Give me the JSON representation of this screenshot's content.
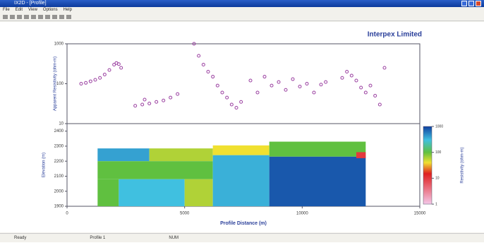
{
  "window": {
    "title": "IX2D - [Profile]",
    "menu": [
      "File",
      "Edit",
      "View",
      "Options",
      "Help"
    ]
  },
  "status": [
    "Ready",
    "Profile 1",
    "NUM"
  ],
  "chart_data": [
    {
      "type": "scatter",
      "title": "Interpex Limited",
      "y_label": "Apparent Resistivity (ohm-m)",
      "log_y": true,
      "ylim": [
        10,
        1000
      ],
      "yticks": [
        10,
        100,
        1000
      ],
      "xlim": [
        0,
        15000
      ],
      "color": "#9a3fa0",
      "x": [
        600,
        800,
        1000,
        1200,
        1400,
        1600,
        1800,
        2000,
        2100,
        2200,
        2300,
        2900,
        3200,
        3300,
        3500,
        3800,
        4100,
        4400,
        4700,
        5400,
        5600,
        5800,
        6000,
        6200,
        6400,
        6600,
        6800,
        7000,
        7200,
        7400,
        7800,
        8100,
        8400,
        8700,
        9000,
        9300,
        9600,
        9900,
        10200,
        10500,
        10800,
        11000,
        11700,
        11900,
        12100,
        12300,
        12500,
        12700,
        12900,
        13100,
        13300,
        13500
      ],
      "y": [
        100,
        105,
        115,
        125,
        140,
        170,
        220,
        300,
        330,
        310,
        250,
        28,
        30,
        40,
        32,
        35,
        38,
        45,
        55,
        1000,
        500,
        300,
        200,
        150,
        90,
        60,
        45,
        30,
        25,
        35,
        120,
        60,
        150,
        90,
        110,
        70,
        130,
        85,
        100,
        60,
        95,
        110,
        140,
        200,
        160,
        120,
        80,
        60,
        90,
        50,
        30,
        250
      ]
    },
    {
      "type": "section",
      "x_label": "Profile Distance (m)",
      "y_label": "Elevation (m)",
      "xlim": [
        0,
        15000
      ],
      "xticks": [
        0,
        5000,
        10000,
        15000
      ],
      "ylim": [
        1900,
        2450
      ],
      "yticks": [
        1900,
        2000,
        2100,
        2200,
        2300,
        2400
      ],
      "colorbar": {
        "label": "Resistivity (ohm-m)",
        "lim": [
          1,
          1000
        ],
        "ticks": [
          1,
          10,
          100,
          1000
        ],
        "stops": [
          {
            "value": 1,
            "color": "#f4c8e8"
          },
          {
            "value": 15,
            "color": "#e02020"
          },
          {
            "value": 40,
            "color": "#f0e030"
          },
          {
            "value": 100,
            "color": "#60c040"
          },
          {
            "value": 300,
            "color": "#40c0e0"
          },
          {
            "value": 1000,
            "color": "#1040a0"
          }
        ]
      },
      "blocks": [
        {
          "x0": 1300,
          "x1": 3500,
          "top": 2285,
          "bottom": 2200,
          "resistivity": 400
        },
        {
          "x0": 3500,
          "x1": 6200,
          "top": 2285,
          "bottom": 2200,
          "resistivity": 60
        },
        {
          "x0": 1300,
          "x1": 6200,
          "top": 2200,
          "bottom": 2080,
          "resistivity": 100
        },
        {
          "x0": 1300,
          "x1": 2200,
          "top": 2080,
          "bottom": 1900,
          "resistivity": 100
        },
        {
          "x0": 2200,
          "x1": 5000,
          "top": 2080,
          "bottom": 1900,
          "resistivity": 300
        },
        {
          "x0": 5000,
          "x1": 6200,
          "top": 2080,
          "bottom": 1900,
          "resistivity": 60
        },
        {
          "x0": 6200,
          "x1": 8600,
          "top": 2305,
          "bottom": 2240,
          "resistivity": 40
        },
        {
          "x0": 6200,
          "x1": 8600,
          "top": 2240,
          "bottom": 1900,
          "resistivity": 350
        },
        {
          "x0": 8600,
          "x1": 12700,
          "top": 2330,
          "bottom": 2230,
          "resistivity": 100
        },
        {
          "x0": 8600,
          "x1": 12700,
          "top": 2230,
          "bottom": 1900,
          "resistivity": 800
        },
        {
          "x0": 12300,
          "x1": 12700,
          "top": 2260,
          "bottom": 2220,
          "resistivity": 10
        }
      ]
    }
  ]
}
